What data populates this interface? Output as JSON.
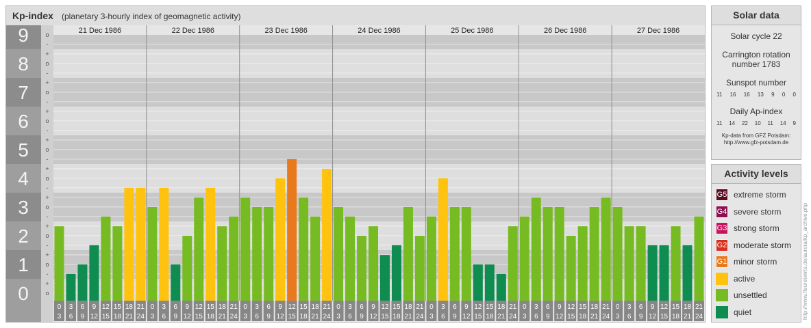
{
  "header": {
    "title": "Kp-index",
    "subtitle": "(planetary 3-hourly index of geomagnetic activity)"
  },
  "chart_data": {
    "type": "bar",
    "days": [
      "21 Dec 1986",
      "22 Dec 1986",
      "23 Dec 1986",
      "24 Dec 1986",
      "25 Dec 1986",
      "26 Dec 1986",
      "27 Dec 1986"
    ],
    "interval_start_labels": [
      "0",
      "3",
      "6",
      "9",
      "12",
      "15",
      "18",
      "21"
    ],
    "interval_end_labels": [
      "3",
      "6",
      "9",
      "12",
      "15",
      "18",
      "21",
      "24"
    ],
    "y_labels": [
      "0",
      "1",
      "2",
      "3",
      "4",
      "5",
      "6",
      "7",
      "8",
      "9"
    ],
    "y_sub_labels": [
      "o",
      "+",
      "-"
    ],
    "ylim": [
      0,
      9.33
    ],
    "grid": true,
    "values": [
      2.33,
      0.67,
      1.0,
      1.67,
      2.67,
      2.33,
      3.67,
      3.67,
      3.0,
      3.67,
      1.0,
      2.0,
      3.33,
      3.67,
      2.33,
      2.67,
      3.33,
      3.0,
      3.0,
      4.0,
      4.67,
      3.33,
      2.67,
      4.33,
      3.0,
      2.67,
      2.0,
      2.33,
      1.33,
      1.67,
      3.0,
      2.0,
      2.67,
      4.0,
      3.0,
      3.0,
      1.0,
      1.0,
      0.67,
      2.33,
      2.67,
      3.33,
      3.0,
      3.0,
      2.0,
      2.33,
      3.0,
      3.33,
      3.0,
      2.33,
      2.33,
      1.67,
      1.67,
      2.33,
      1.67,
      2.67
    ],
    "colors": {
      "quiet": "#0f8c50",
      "unsettled": "#77bb22",
      "active": "#ffc30f",
      "minor_storm": "#e8791c",
      "band_dark": "#c8c8c8",
      "band_light": "#dedede",
      "axis_band": "#9e9e9e",
      "tick_box": "#878787"
    }
  },
  "solar": {
    "title": "Solar data",
    "cycle": "Solar cycle 22",
    "carrington_line1": "Carrington rotation",
    "carrington_line2": "number 1783",
    "sunspot_title": "Sunspot number",
    "sunspot_values": [
      "11",
      "16",
      "16",
      "13",
      "9",
      "0",
      "0"
    ],
    "ap_title": "Daily Ap-index",
    "ap_values": [
      "11",
      "14",
      "22",
      "10",
      "11",
      "14",
      "9"
    ],
    "source_line1": "Kp-data from GFZ Potsdam:",
    "source_line2": "http://www.gfz-potsdam.de"
  },
  "activity": {
    "title": "Activity levels",
    "levels": [
      {
        "code": "G5",
        "label": "extreme storm",
        "color": "#5c0a1e"
      },
      {
        "code": "G4",
        "label": "severe storm",
        "color": "#8a1050"
      },
      {
        "code": "G3",
        "label": "strong storm",
        "color": "#c8125e"
      },
      {
        "code": "G2",
        "label": "moderate storm",
        "color": "#d92e1d"
      },
      {
        "code": "G1",
        "label": "minor storm",
        "color": "#e8791c"
      },
      {
        "code": "",
        "label": "active",
        "color": "#ffc30f"
      },
      {
        "code": "",
        "label": "unsettled",
        "color": "#77bb22"
      },
      {
        "code": "",
        "label": "quiet",
        "color": "#0f8c50"
      }
    ]
  },
  "credit": "http://www.fleuretwirte.de/aurora/kp_archive.php"
}
